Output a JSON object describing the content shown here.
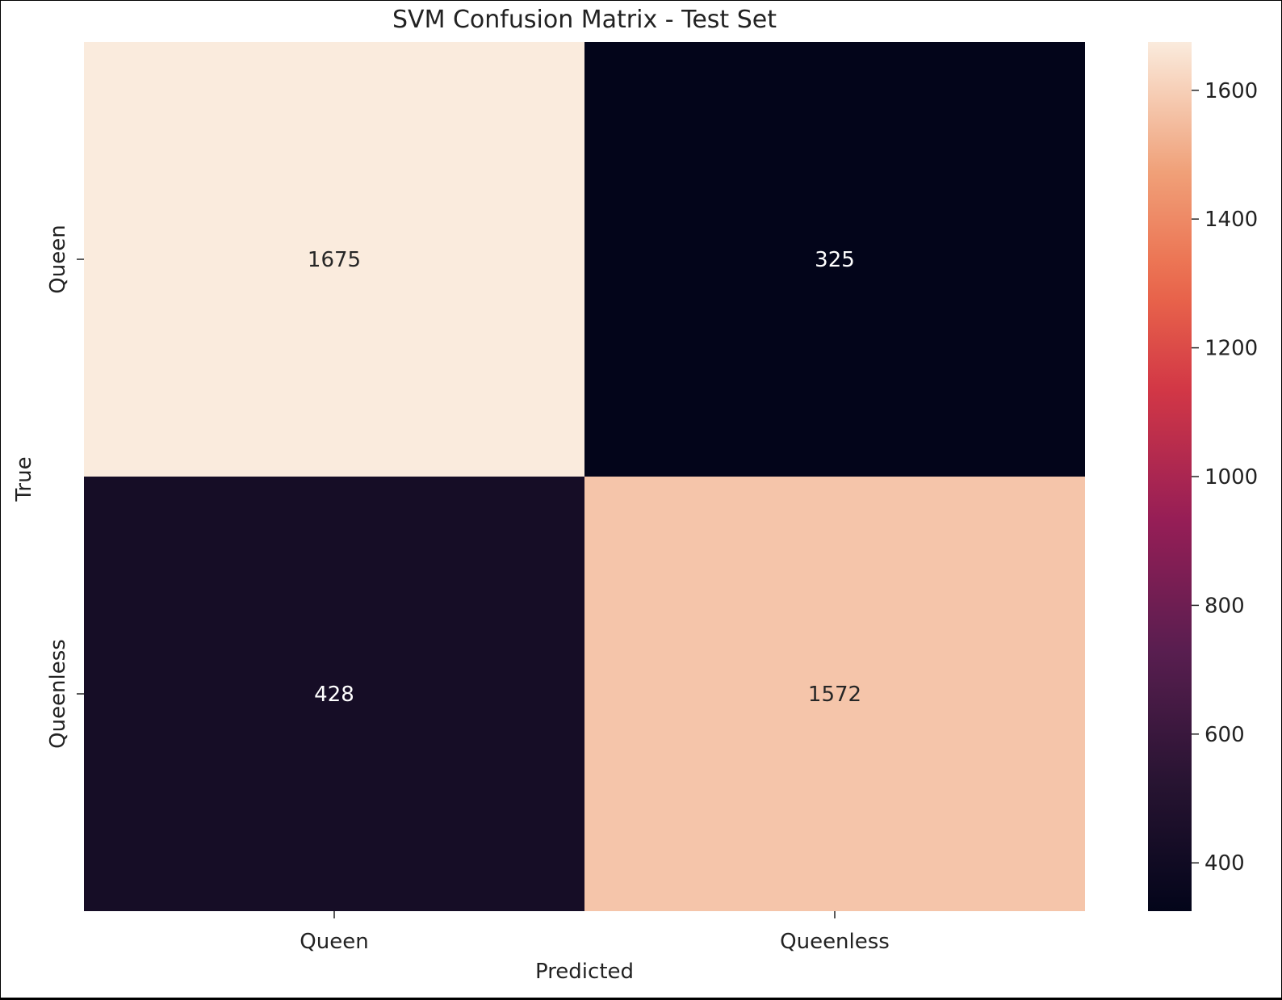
{
  "chart_data": {
    "type": "heatmap",
    "title": "SVM Confusion Matrix - Test Set",
    "xlabel": "Predicted",
    "ylabel": "True",
    "x_categories": [
      "Queen",
      "Queenless"
    ],
    "y_categories": [
      "Queen",
      "Queenless"
    ],
    "values": [
      [
        1675,
        325
      ],
      [
        428,
        1572
      ]
    ],
    "annotation_text": [
      [
        "1675",
        "325"
      ],
      [
        "428",
        "1572"
      ]
    ],
    "colormap": "rocket",
    "colorbar": {
      "range": [
        325,
        1675
      ],
      "ticks": [
        400,
        600,
        800,
        1000,
        1200,
        1400,
        1600
      ],
      "tick_labels": [
        "400",
        "600",
        "800",
        "1000",
        "1200",
        "1400",
        "1600"
      ]
    },
    "grid": false,
    "legend": "colorbar-right"
  }
}
